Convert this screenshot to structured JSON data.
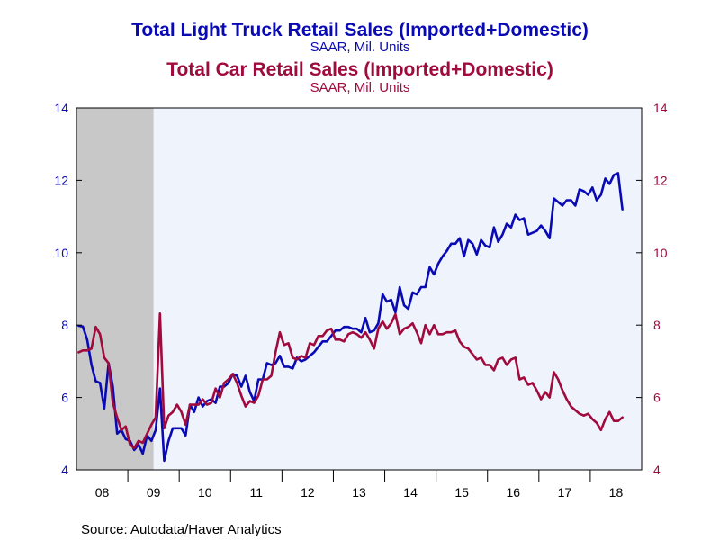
{
  "chart_data": {
    "type": "line",
    "title": "Total Light Truck Retail Sales (Imported+Domestic)",
    "title_unit": "SAAR, Mil. Units",
    "title2": "Total Car Retail Sales (Imported+Domestic)",
    "title2_unit": "SAAR, Mil. Units",
    "source": "Source:  Autodata/Haver Analytics",
    "x_tick_labels": [
      "08",
      "09",
      "10",
      "11",
      "12",
      "13",
      "14",
      "15",
      "16",
      "17",
      "18"
    ],
    "y_ticks": [
      "4",
      "6",
      "8",
      "10",
      "12",
      "14"
    ],
    "y_right_ticks": [
      "4",
      "6",
      "8",
      "10",
      "12",
      "14"
    ],
    "ylim": [
      4,
      14
    ],
    "y2lim": [
      4,
      14
    ],
    "xlim": [
      "2008-01",
      "2018-12"
    ],
    "shaded_period": [
      "2008-01",
      "2009-06"
    ],
    "plot_background": "#eef3fc",
    "shade_color": "#c8c8c8",
    "series": [
      {
        "name": "Total Light Truck Retail Sales (Imported+Domestic)",
        "axis": "left",
        "color": "#0a0ab4",
        "start": "2008-01",
        "values": [
          7.98,
          7.96,
          7.6,
          6.9,
          6.45,
          6.4,
          5.7,
          6.95,
          6.3,
          5.0,
          5.1,
          4.85,
          4.8,
          4.55,
          4.7,
          4.45,
          4.95,
          4.8,
          5.1,
          6.25,
          4.25,
          4.8,
          5.15,
          5.15,
          5.15,
          4.95,
          5.8,
          5.6,
          6.0,
          5.75,
          5.9,
          5.95,
          5.85,
          6.3,
          6.3,
          6.4,
          6.65,
          6.6,
          6.3,
          6.6,
          6.15,
          5.9,
          6.5,
          6.5,
          6.95,
          6.9,
          6.95,
          7.15,
          6.85,
          6.85,
          6.8,
          7.1,
          7.0,
          7.05,
          7.15,
          7.25,
          7.4,
          7.55,
          7.55,
          7.7,
          7.85,
          7.85,
          7.95,
          7.95,
          7.9,
          7.9,
          7.8,
          8.2,
          7.8,
          7.85,
          8.05,
          8.85,
          8.65,
          8.7,
          8.35,
          9.05,
          8.55,
          8.45,
          8.9,
          8.85,
          9.05,
          9.05,
          9.6,
          9.4,
          9.7,
          9.9,
          10.05,
          10.25,
          10.25,
          10.4,
          9.9,
          10.35,
          10.25,
          9.95,
          10.35,
          10.2,
          10.15,
          10.7,
          10.3,
          10.5,
          10.8,
          10.7,
          11.05,
          10.9,
          10.95,
          10.5,
          10.55,
          10.6,
          10.75,
          10.6,
          10.4,
          11.5,
          11.4,
          11.3,
          11.45,
          11.45,
          11.3,
          11.75,
          11.7,
          11.6,
          11.8,
          11.45,
          11.6,
          12.05,
          11.9,
          12.15,
          12.2,
          11.2
        ]
      },
      {
        "name": "Total Car Retail Sales (Imported+Domestic)",
        "axis": "right",
        "color": "#a00a3c",
        "start": "2008-01",
        "values": [
          7.25,
          7.3,
          7.3,
          7.35,
          7.95,
          7.75,
          7.1,
          6.95,
          5.85,
          5.45,
          5.1,
          5.2,
          4.7,
          4.6,
          4.8,
          4.75,
          5.0,
          5.25,
          5.45,
          8.32,
          5.15,
          5.5,
          5.6,
          5.8,
          5.6,
          5.25,
          5.8,
          5.8,
          5.8,
          5.95,
          5.8,
          5.85,
          6.25,
          6.0,
          6.4,
          6.5,
          6.65,
          6.4,
          6.05,
          5.75,
          5.9,
          5.85,
          6.05,
          6.5,
          6.5,
          6.6,
          7.25,
          7.8,
          7.45,
          7.5,
          7.1,
          7.05,
          7.15,
          7.1,
          7.5,
          7.45,
          7.7,
          7.7,
          7.85,
          7.9,
          7.6,
          7.6,
          7.55,
          7.75,
          7.8,
          7.75,
          7.65,
          7.8,
          7.6,
          7.35,
          7.9,
          8.1,
          7.9,
          8.05,
          8.3,
          7.75,
          7.9,
          7.95,
          8.05,
          7.8,
          7.5,
          8.0,
          7.75,
          8.0,
          7.75,
          7.75,
          7.8,
          7.8,
          7.85,
          7.55,
          7.4,
          7.35,
          7.2,
          7.05,
          7.1,
          6.9,
          6.9,
          6.75,
          7.05,
          7.1,
          6.9,
          7.05,
          7.1,
          6.5,
          6.55,
          6.35,
          6.4,
          6.2,
          5.95,
          6.15,
          6.0,
          6.7,
          6.5,
          6.2,
          5.95,
          5.75,
          5.65,
          5.55,
          5.5,
          5.55,
          5.4,
          5.3,
          5.1,
          5.4,
          5.6,
          5.35,
          5.35,
          5.45
        ]
      }
    ]
  }
}
